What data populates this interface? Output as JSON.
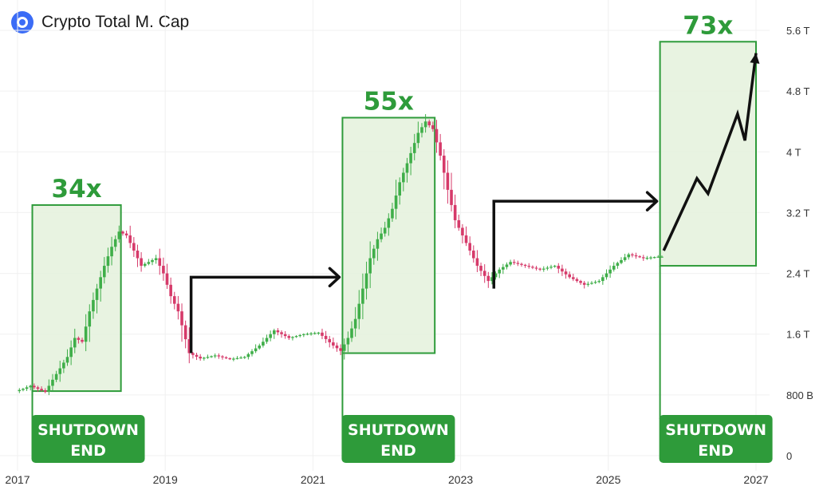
{
  "header": {
    "title": "Crypto Total M. Cap",
    "logo_icon": "crypto-cap-logo-icon"
  },
  "colors": {
    "up": "#3fae49",
    "down": "#d63a6a",
    "box_fill": "#e4f1dc",
    "box_stroke": "#2e9b3a",
    "label_bg": "#2e9b3a",
    "arrow": "#111111",
    "axis_text": "#333333"
  },
  "chart_data": {
    "type": "candlestick",
    "title": "Crypto Total M. Cap",
    "x_axis": {
      "ticks": [
        "2017",
        "2019",
        "2021",
        "2023",
        "2025",
        "2027"
      ],
      "range": [
        2017,
        2027
      ]
    },
    "y_axis": {
      "ticks": [
        "0",
        "800 B",
        "1.6 T",
        "2.4 T",
        "3.2 T",
        "4 T",
        "4.8 T",
        "5.6 T"
      ],
      "range_trillions": [
        0,
        5.6
      ],
      "position": "right"
    },
    "grid": true,
    "series_points": [
      {
        "x": 2017.0,
        "v": 0.85
      },
      {
        "x": 2017.1,
        "v": 0.88
      },
      {
        "x": 2017.2,
        "v": 0.92
      },
      {
        "x": 2017.3,
        "v": 0.88
      },
      {
        "x": 2017.4,
        "v": 0.84
      },
      {
        "x": 2017.5,
        "v": 1.0
      },
      {
        "x": 2017.6,
        "v": 1.15
      },
      {
        "x": 2017.7,
        "v": 1.3
      },
      {
        "x": 2017.8,
        "v": 1.55
      },
      {
        "x": 2017.9,
        "v": 1.5
      },
      {
        "x": 2018.0,
        "v": 1.9
      },
      {
        "x": 2018.1,
        "v": 2.2
      },
      {
        "x": 2018.2,
        "v": 2.5
      },
      {
        "x": 2018.3,
        "v": 2.75
      },
      {
        "x": 2018.4,
        "v": 2.95
      },
      {
        "x": 2018.5,
        "v": 2.9
      },
      {
        "x": 2018.6,
        "v": 2.7
      },
      {
        "x": 2018.7,
        "v": 2.5
      },
      {
        "x": 2018.8,
        "v": 2.55
      },
      {
        "x": 2018.9,
        "v": 2.6
      },
      {
        "x": 2019.0,
        "v": 2.4
      },
      {
        "x": 2019.1,
        "v": 2.1
      },
      {
        "x": 2019.2,
        "v": 1.9
      },
      {
        "x": 2019.35,
        "v": 1.35
      },
      {
        "x": 2019.5,
        "v": 1.28
      },
      {
        "x": 2019.7,
        "v": 1.32
      },
      {
        "x": 2019.9,
        "v": 1.27
      },
      {
        "x": 2020.1,
        "v": 1.3
      },
      {
        "x": 2020.3,
        "v": 1.45
      },
      {
        "x": 2020.5,
        "v": 1.65
      },
      {
        "x": 2020.7,
        "v": 1.55
      },
      {
        "x": 2020.9,
        "v": 1.6
      },
      {
        "x": 2021.1,
        "v": 1.62
      },
      {
        "x": 2021.3,
        "v": 1.45
      },
      {
        "x": 2021.4,
        "v": 1.38
      },
      {
        "x": 2021.5,
        "v": 1.55
      },
      {
        "x": 2021.6,
        "v": 1.8
      },
      {
        "x": 2021.7,
        "v": 2.2
      },
      {
        "x": 2021.8,
        "v": 2.6
      },
      {
        "x": 2021.9,
        "v": 2.85
      },
      {
        "x": 2022.0,
        "v": 3.0
      },
      {
        "x": 2022.1,
        "v": 3.25
      },
      {
        "x": 2022.2,
        "v": 3.6
      },
      {
        "x": 2022.3,
        "v": 3.85
      },
      {
        "x": 2022.45,
        "v": 4.25
      },
      {
        "x": 2022.55,
        "v": 4.4
      },
      {
        "x": 2022.65,
        "v": 4.3
      },
      {
        "x": 2022.75,
        "v": 3.95
      },
      {
        "x": 2022.85,
        "v": 3.5
      },
      {
        "x": 2022.95,
        "v": 3.1
      },
      {
        "x": 2023.1,
        "v": 2.8
      },
      {
        "x": 2023.25,
        "v": 2.5
      },
      {
        "x": 2023.4,
        "v": 2.3
      },
      {
        "x": 2023.55,
        "v": 2.45
      },
      {
        "x": 2023.7,
        "v": 2.55
      },
      {
        "x": 2023.9,
        "v": 2.5
      },
      {
        "x": 2024.1,
        "v": 2.45
      },
      {
        "x": 2024.3,
        "v": 2.5
      },
      {
        "x": 2024.5,
        "v": 2.35
      },
      {
        "x": 2024.7,
        "v": 2.25
      },
      {
        "x": 2024.9,
        "v": 2.3
      },
      {
        "x": 2025.1,
        "v": 2.5
      },
      {
        "x": 2025.3,
        "v": 2.65
      },
      {
        "x": 2025.5,
        "v": 2.6
      },
      {
        "x": 2025.7,
        "v": 2.62
      }
    ],
    "highlight_boxes": [
      {
        "x_start": 2017.2,
        "x_end": 2018.4,
        "y_low": 0.85,
        "y_high": 3.3,
        "label": "34x"
      },
      {
        "x_start": 2021.4,
        "x_end": 2022.65,
        "y_low": 1.35,
        "y_high": 4.45,
        "label": "55x"
      },
      {
        "x_start": 2025.7,
        "x_end": 2027.0,
        "y_low": 2.5,
        "y_high": 5.45,
        "label": "73x"
      }
    ],
    "projection": [
      {
        "x": 2025.75,
        "v": 2.7
      },
      {
        "x": 2026.2,
        "v": 3.65
      },
      {
        "x": 2026.35,
        "v": 3.45
      },
      {
        "x": 2026.75,
        "v": 4.5
      },
      {
        "x": 2026.85,
        "v": 4.15
      },
      {
        "x": 2027.0,
        "v": 5.3
      }
    ],
    "cycle_arrows": [
      {
        "x_from": 2019.35,
        "y_from": 1.35,
        "y_level": 2.35,
        "x_to": 2021.4
      },
      {
        "x_from": 2023.45,
        "y_from": 2.2,
        "y_level": 3.35,
        "x_to": 2025.7
      }
    ],
    "shutdown_labels": [
      {
        "x": 2017.7,
        "line1": "SHUTDOWN",
        "line2": "END"
      },
      {
        "x": 2021.9,
        "line1": "SHUTDOWN",
        "line2": "END"
      },
      {
        "x": 2026.2,
        "line1": "SHUTDOWN",
        "line2": "END"
      }
    ]
  }
}
